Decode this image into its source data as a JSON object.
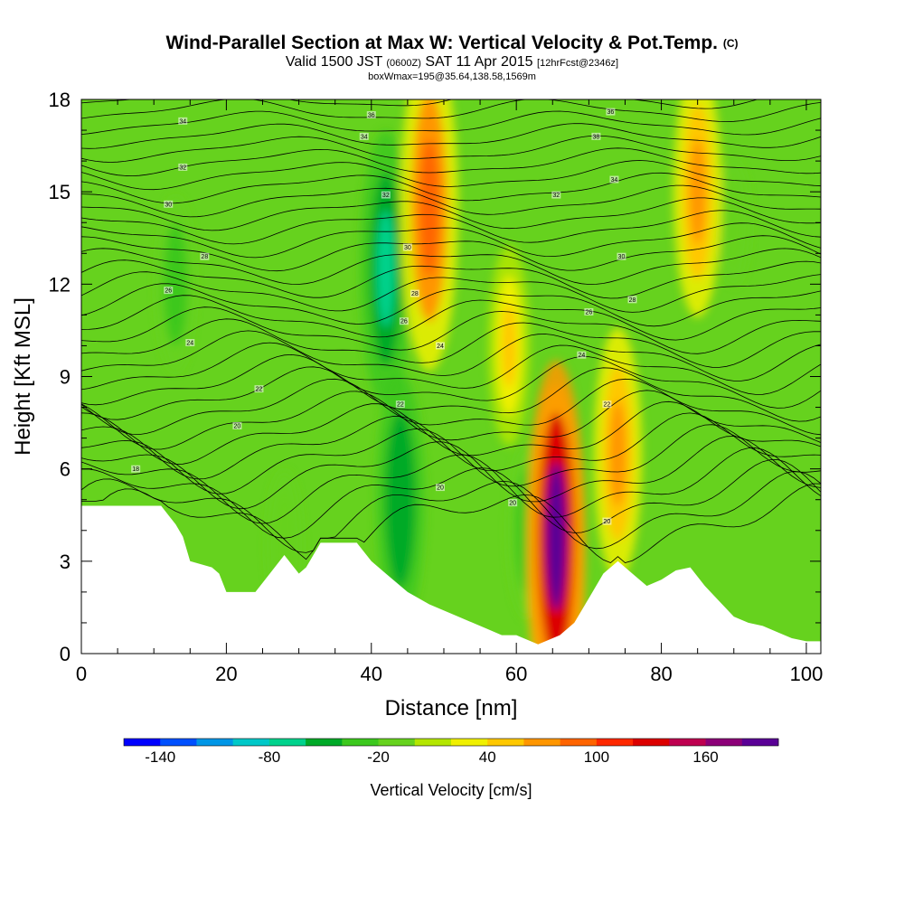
{
  "header": {
    "title": "Wind-Parallel Section at Max W: Vertical Velocity & Pot.Temp.",
    "title_mark": "(C)",
    "valid_prefix": "Valid 1500 JST",
    "valid_zulu": "(0600Z)",
    "valid_date": "SAT 11 Apr 2015",
    "forecast": "[12hrFcst@2346z]",
    "box_info": "boxWmax=195@35.64,138.58,1569m"
  },
  "chart_data": {
    "type": "heatmap",
    "title": "Wind-Parallel Section at Max W: Vertical Velocity & Pot.Temp.",
    "xlabel": "Distance [nm]",
    "ylabel": "Height [Kft MSL]",
    "xlim": [
      0,
      102
    ],
    "ylim": [
      0,
      18
    ],
    "x_ticks": [
      0,
      20,
      40,
      60,
      80,
      100
    ],
    "y_ticks": [
      0,
      3,
      6,
      9,
      12,
      15,
      18
    ],
    "colorbar": {
      "title": "Vertical Velocity [cm/s]",
      "min": -160,
      "step": 20,
      "tick_labels": [
        -140,
        -80,
        -20,
        40,
        100,
        160
      ],
      "colors": [
        "#0000ff",
        "#0050ff",
        "#0096e6",
        "#00c8c8",
        "#00d28c",
        "#00aa28",
        "#3cc81e",
        "#66d21e",
        "#b4e600",
        "#f0f000",
        "#ffc800",
        "#ff9600",
        "#ff6400",
        "#ff2800",
        "#dc0000",
        "#be0050",
        "#8c0078",
        "#5a0096"
      ]
    },
    "vertical_velocity_features": [
      {
        "x": 65.5,
        "y": 3.8,
        "value": 180
      },
      {
        "x": 65.5,
        "y": 3.0,
        "value": 130
      },
      {
        "x": 48,
        "y": 14.5,
        "value": 90
      },
      {
        "x": 85,
        "y": 15,
        "value": 60
      },
      {
        "x": 74,
        "y": 6.5,
        "value": 60
      },
      {
        "x": 59,
        "y": 10,
        "value": 40
      },
      {
        "x": 42,
        "y": 12.5,
        "value": -70
      },
      {
        "x": 44,
        "y": 5,
        "value": -60
      },
      {
        "x": 13,
        "y": 12,
        "value": -30
      },
      {
        "x": 61.5,
        "y": 4,
        "value": -30
      },
      {
        "x": 28,
        "y": 3.5,
        "value": -20
      },
      {
        "x": 90,
        "y": 14,
        "value": -10
      }
    ],
    "terrain_kft": {
      "x": [
        0,
        11,
        12,
        13,
        14,
        15,
        18,
        19,
        20,
        24,
        26,
        28,
        30,
        31,
        32,
        33,
        34,
        38,
        40,
        42,
        45,
        48,
        52,
        56,
        58,
        60,
        62,
        63,
        64,
        66,
        68,
        70,
        72,
        74,
        76,
        78,
        80,
        82,
        84,
        86,
        88,
        90,
        92,
        94,
        96,
        98,
        100,
        102
      ],
      "y": [
        4.8,
        4.8,
        4.5,
        4.2,
        3.8,
        3.0,
        2.8,
        2.6,
        2.0,
        2.0,
        2.6,
        3.2,
        2.6,
        2.8,
        3.2,
        3.6,
        3.6,
        3.6,
        3.0,
        2.6,
        2.0,
        1.6,
        1.2,
        0.8,
        0.6,
        0.6,
        0.4,
        0.3,
        0.4,
        0.6,
        1.0,
        1.8,
        2.6,
        3.0,
        2.6,
        2.2,
        2.4,
        2.7,
        2.8,
        2.2,
        1.7,
        1.2,
        1.0,
        0.9,
        0.7,
        0.5,
        0.4,
        0.4
      ]
    },
    "potential_temperature_labels": [
      {
        "text": "34",
        "x": 14,
        "y": 17.3
      },
      {
        "text": "32",
        "x": 14,
        "y": 15.8
      },
      {
        "text": "30",
        "x": 12,
        "y": 14.6
      },
      {
        "text": "28",
        "x": 17,
        "y": 12.9
      },
      {
        "text": "26",
        "x": 12,
        "y": 11.8
      },
      {
        "text": "24",
        "x": 15,
        "y": 10.1
      },
      {
        "text": "22",
        "x": 24.5,
        "y": 8.6
      },
      {
        "text": "20",
        "x": 21.5,
        "y": 7.4
      },
      {
        "text": "18",
        "x": 7.5,
        "y": 6.0
      },
      {
        "text": "36",
        "x": 40,
        "y": 17.5
      },
      {
        "text": "34",
        "x": 39,
        "y": 16.8
      },
      {
        "text": "32",
        "x": 42,
        "y": 14.9
      },
      {
        "text": "30",
        "x": 45,
        "y": 13.2
      },
      {
        "text": "28",
        "x": 46,
        "y": 11.7
      },
      {
        "text": "26",
        "x": 44.5,
        "y": 10.8
      },
      {
        "text": "24",
        "x": 49.5,
        "y": 10.0
      },
      {
        "text": "22",
        "x": 44,
        "y": 8.1
      },
      {
        "text": "20",
        "x": 49.5,
        "y": 5.4
      },
      {
        "text": "20",
        "x": 59.5,
        "y": 4.9
      },
      {
        "text": "36",
        "x": 73,
        "y": 17.6
      },
      {
        "text": "38",
        "x": 71,
        "y": 16.8
      },
      {
        "text": "34",
        "x": 73.5,
        "y": 15.4
      },
      {
        "text": "32",
        "x": 65.5,
        "y": 14.9
      },
      {
        "text": "30",
        "x": 74.5,
        "y": 12.9
      },
      {
        "text": "28",
        "x": 76,
        "y": 11.5
      },
      {
        "text": "26",
        "x": 70,
        "y": 11.1
      },
      {
        "text": "24",
        "x": 69,
        "y": 9.7
      },
      {
        "text": "22",
        "x": 72.5,
        "y": 8.1
      },
      {
        "text": "20",
        "x": 72.5,
        "y": 4.3
      }
    ]
  }
}
